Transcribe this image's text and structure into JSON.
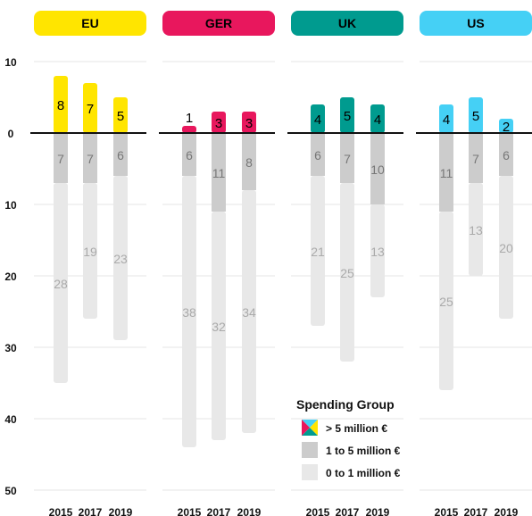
{
  "chart_data": {
    "type": "bar",
    "subtype": "diverging-stacked",
    "x_categories": [
      "2015",
      "2017",
      "2019"
    ],
    "ylim": [
      -50,
      10
    ],
    "y_ticks": [
      {
        "value": 10,
        "label": "10"
      },
      {
        "value": 0,
        "label": "0"
      },
      {
        "value": -10,
        "label": "10"
      },
      {
        "value": -20,
        "label": "20"
      },
      {
        "value": -30,
        "label": "30"
      },
      {
        "value": -40,
        "label": "40"
      },
      {
        "value": -50,
        "label": "50"
      }
    ],
    "groups": [
      {
        "name": "EU",
        "color": "#FFE500",
        "label_text_color": "#000000",
        "above_value_color": "#000000",
        "gt5": [
          8,
          7,
          5
        ],
        "m1to5": [
          7,
          7,
          6
        ],
        "m0to1": [
          28,
          19,
          23
        ]
      },
      {
        "name": "GER",
        "color": "#E8175D",
        "label_text_color": "#000000",
        "above_value_color": "#000000",
        "gt5": [
          1,
          3,
          3
        ],
        "m1to5": [
          6,
          11,
          8
        ],
        "m0to1": [
          38,
          32,
          34
        ]
      },
      {
        "name": "UK",
        "color": "#009B8F",
        "label_text_color": "#000000",
        "above_value_color": "#000000",
        "gt5": [
          4,
          5,
          4
        ],
        "m1to5": [
          6,
          7,
          10
        ],
        "m0to1": [
          21,
          25,
          13
        ]
      },
      {
        "name": "US",
        "color": "#45D0F5",
        "label_text_color": "#000000",
        "above_value_color": "#000000",
        "gt5": [
          4,
          5,
          2
        ],
        "m1to5": [
          11,
          7,
          6
        ],
        "m0to1": [
          25,
          13,
          20
        ]
      }
    ],
    "colors": {
      "m1to5": "#CCCCCC",
      "m0to1": "#E8E8E8",
      "segment_label": "#AAAAAA",
      "axis": "#111111"
    },
    "legend": {
      "title": "Spending Group",
      "items": [
        {
          "label": "> 5 million €",
          "swatch": "multicolor"
        },
        {
          "label": "1 to 5 million €",
          "swatch": "#CCCCCC"
        },
        {
          "label": "0 to 1 million €",
          "swatch": "#E8E8E8"
        }
      ],
      "placement": "bottom-right"
    }
  }
}
